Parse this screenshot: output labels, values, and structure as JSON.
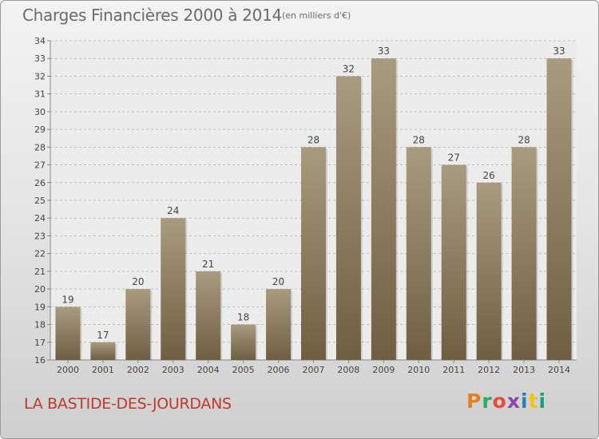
{
  "header": {
    "title": "Charges Financières 2000 à 2014",
    "unit": "(en milliers d'€)"
  },
  "footer": {
    "place": "LA BASTIDE-DES-JOURDANS",
    "brand": "Proxiti",
    "brand_colors": [
      "#e67e22",
      "#27ae60",
      "#e74c3c",
      "#8e44ad",
      "#2980b9",
      "#f1c40f",
      "#16a085"
    ]
  },
  "chart_data": {
    "type": "bar",
    "title": "Charges Financières 2000 à 2014",
    "subtitle": "(en milliers d'€)",
    "categories": [
      "2000",
      "2001",
      "2002",
      "2003",
      "2004",
      "2005",
      "2006",
      "2007",
      "2008",
      "2009",
      "2010",
      "2011",
      "2012",
      "2013",
      "2014"
    ],
    "values": [
      19,
      17,
      20,
      24,
      21,
      18,
      20,
      28,
      32,
      33,
      28,
      27,
      26,
      28,
      33
    ],
    "ylim": [
      16,
      34
    ],
    "yticks": [
      16,
      17,
      18,
      19,
      20,
      21,
      22,
      23,
      24,
      25,
      26,
      27,
      28,
      29,
      30,
      31,
      32,
      33,
      34
    ],
    "grid": true,
    "bar_color_top": "#a99b80",
    "bar_color_bottom": "#6f5e42"
  }
}
